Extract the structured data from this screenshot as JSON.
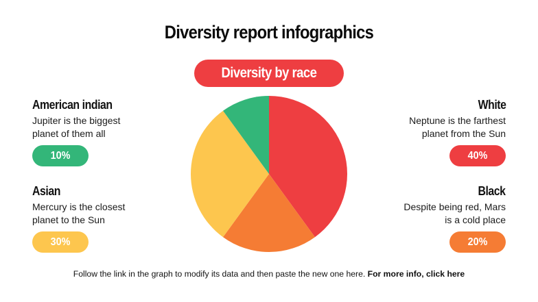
{
  "title": "Diversity report infographics",
  "subtitle": "Diversity by race",
  "categories": [
    {
      "name": "American indian",
      "description_line1": "Jupiter is the biggest",
      "description_line2": "planet of them all",
      "value_label": "10%",
      "color": "#33b679"
    },
    {
      "name": "Asian",
      "description_line1": "Mercury is the closest",
      "description_line2": "planet to the Sun",
      "value_label": "30%",
      "color": "#fdc64e"
    },
    {
      "name": "White",
      "description_line1": "Neptune is the farthest",
      "description_line2": "planet from the Sun",
      "value_label": "40%",
      "color": "#ee3e41"
    },
    {
      "name": "Black",
      "description_line1": "Despite being red, Mars",
      "description_line2": "is a cold place",
      "value_label": "20%",
      "color": "#f57c34"
    }
  ],
  "footer": {
    "text": "Follow the link in the graph to modify its data and then paste the new one here.",
    "link": "For more info, click here"
  },
  "chart_data": {
    "type": "pie",
    "title": "Diversity by race",
    "categories": [
      "White",
      "Black",
      "Asian",
      "American indian"
    ],
    "values": [
      40,
      20,
      30,
      10
    ],
    "colors": [
      "#ee3e41",
      "#f57c34",
      "#fdc64e",
      "#33b679"
    ],
    "start_angle": "12 o'clock, clockwise",
    "legend_position": "flanking labels left and right"
  }
}
